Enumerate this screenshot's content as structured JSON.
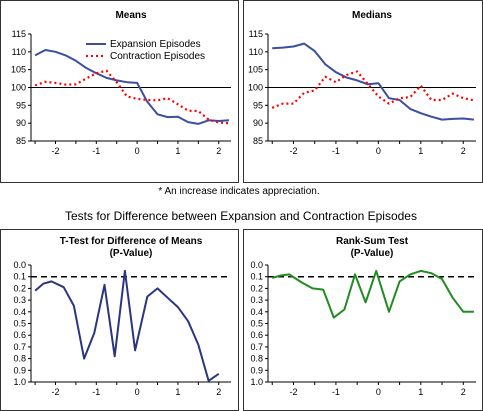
{
  "footnote": "* An increase indicates appreciation.",
  "section_title": "Tests for Difference between Expansion and Contraction Episodes",
  "chart_data": [
    {
      "type": "line",
      "title": "Means",
      "subtitle": "",
      "x": [
        -2.5,
        -2.25,
        -2,
        -1.75,
        -1.5,
        -1.25,
        -1,
        -0.75,
        -0.5,
        -0.25,
        0,
        0.25,
        0.5,
        0.75,
        1,
        1.25,
        1.5,
        1.75,
        2,
        2.25
      ],
      "xlim": [
        -2.6,
        2.3
      ],
      "ylim": [
        85,
        115
      ],
      "yticks": [
        85,
        90,
        95,
        100,
        105,
        110,
        115
      ],
      "xticks": [
        -2,
        -1,
        0,
        1,
        2
      ],
      "xtick_labels": [
        "-2",
        "-1",
        "0",
        "1",
        "2"
      ],
      "ytick_labels": [
        "85",
        "90",
        "95",
        "100",
        "105",
        "110",
        "115"
      ],
      "reference_line": 100,
      "legend": "top-right",
      "series": [
        {
          "name": "Expansion Episodes",
          "color": "#3a4fa0",
          "style": "solid",
          "values": [
            109,
            110.5,
            110,
            109,
            107.5,
            105.5,
            104,
            102.7,
            102,
            101.5,
            101.3,
            96,
            92.5,
            91.7,
            91.8,
            90.3,
            89.8,
            90.8,
            90.6,
            90.8
          ]
        },
        {
          "name": "Contraction Episodes",
          "color": "#ff0000",
          "style": "dotted",
          "values": [
            100.6,
            101.6,
            101.3,
            100.8,
            100.9,
            102.5,
            104,
            104.7,
            101.5,
            97.5,
            96.8,
            96.5,
            96.4,
            97,
            95.3,
            93.5,
            93.4,
            91,
            90.2,
            90
          ]
        }
      ]
    },
    {
      "type": "line",
      "title": "Medians",
      "subtitle": "",
      "x": [
        -2.5,
        -2.25,
        -2,
        -1.75,
        -1.5,
        -1.25,
        -1,
        -0.75,
        -0.5,
        -0.25,
        0,
        0.25,
        0.5,
        0.75,
        1,
        1.25,
        1.5,
        1.75,
        2,
        2.25
      ],
      "xlim": [
        -2.6,
        2.3
      ],
      "ylim": [
        85,
        115
      ],
      "yticks": [
        85,
        90,
        95,
        100,
        105,
        110,
        115
      ],
      "xticks": [
        -2,
        -1,
        0,
        1,
        2
      ],
      "xtick_labels": [
        "-2",
        "-1",
        "0",
        "1",
        "2"
      ],
      "ytick_labels": [
        "85",
        "90",
        "95",
        "100",
        "105",
        "110",
        "115"
      ],
      "reference_line": 100,
      "series": [
        {
          "name": "",
          "color": "#3a4fa0",
          "style": "solid",
          "values": [
            111,
            111.2,
            111.5,
            112.3,
            110.2,
            106.5,
            104.3,
            102.8,
            102,
            100.9,
            101.2,
            97,
            96.5,
            94,
            92.8,
            91.8,
            91,
            91.2,
            91.3,
            91
          ]
        },
        {
          "name": "",
          "color": "#ff0000",
          "style": "dotted",
          "values": [
            94.3,
            95.5,
            95.5,
            98.5,
            99.2,
            103,
            101.5,
            103.5,
            104.5,
            101,
            97.5,
            95.5,
            97,
            97.3,
            100.5,
            96.5,
            96.5,
            98.3,
            97,
            96.4
          ]
        }
      ]
    },
    {
      "type": "line",
      "title": "T-Test for Difference of Means",
      "subtitle": "(P-Value)",
      "x": [
        -2.5,
        -2.3,
        -2.1,
        -1.8,
        -1.55,
        -1.3,
        -1.05,
        -0.8,
        -0.55,
        -0.3,
        -0.05,
        0.25,
        0.5,
        0.75,
        1,
        1.25,
        1.5,
        1.75,
        2,
        2.25
      ],
      "xlim": [
        -2.6,
        2.3
      ],
      "ylim": [
        0,
        1
      ],
      "y_inverted": true,
      "yticks": [
        0,
        0.1,
        0.2,
        0.3,
        0.4,
        0.5,
        0.6,
        0.7,
        0.8,
        0.9,
        1.0
      ],
      "xticks": [
        -2,
        -1,
        0,
        1,
        2
      ],
      "xtick_labels": [
        "-2",
        "-1",
        "0",
        "1",
        "2"
      ],
      "ytick_labels": [
        "0.0",
        "0.1",
        "0.2",
        "0.3",
        "0.4",
        "0.5",
        "0.6",
        "0.7",
        "0.8",
        "0.9",
        "1.0"
      ],
      "reference_line": 0.1,
      "series": [
        {
          "name": "",
          "color": "#2a3680",
          "style": "solid",
          "values": [
            0.22,
            0.16,
            0.14,
            0.19,
            0.35,
            0.8,
            0.58,
            0.17,
            0.78,
            0.05,
            0.73,
            0.27,
            0.2,
            0.28,
            0.36,
            0.48,
            0.68,
            0.99,
            0.93,
            null
          ]
        }
      ]
    },
    {
      "type": "line",
      "title": "Rank-Sum Test",
      "subtitle": "(P-Value)",
      "x": [
        -2.5,
        -2.3,
        -2.1,
        -1.8,
        -1.55,
        -1.3,
        -1.05,
        -0.8,
        -0.55,
        -0.3,
        -0.05,
        0.25,
        0.5,
        0.75,
        1,
        1.25,
        1.5,
        1.75,
        2,
        2.25
      ],
      "xlim": [
        -2.6,
        2.3
      ],
      "ylim": [
        0,
        1
      ],
      "y_inverted": true,
      "yticks": [
        0,
        0.1,
        0.2,
        0.3,
        0.4,
        0.5,
        0.6,
        0.7,
        0.8,
        0.9,
        1.0
      ],
      "xticks": [
        -2,
        -1,
        0,
        1,
        2
      ],
      "xtick_labels": [
        "-2",
        "-1",
        "0",
        "1",
        "2"
      ],
      "ytick_labels": [
        "0.0",
        "0.1",
        "0.2",
        "0.3",
        "0.4",
        "0.5",
        "0.6",
        "0.7",
        "0.8",
        "0.9",
        "1.0"
      ],
      "reference_line": 0.1,
      "series": [
        {
          "name": "",
          "color": "#228b22",
          "style": "solid",
          "values": [
            0.11,
            0.09,
            0.08,
            0.15,
            0.2,
            0.21,
            0.45,
            0.38,
            0.08,
            0.32,
            0.05,
            0.4,
            0.14,
            0.08,
            0.05,
            0.07,
            0.12,
            0.28,
            0.4,
            0.4
          ]
        }
      ]
    }
  ]
}
